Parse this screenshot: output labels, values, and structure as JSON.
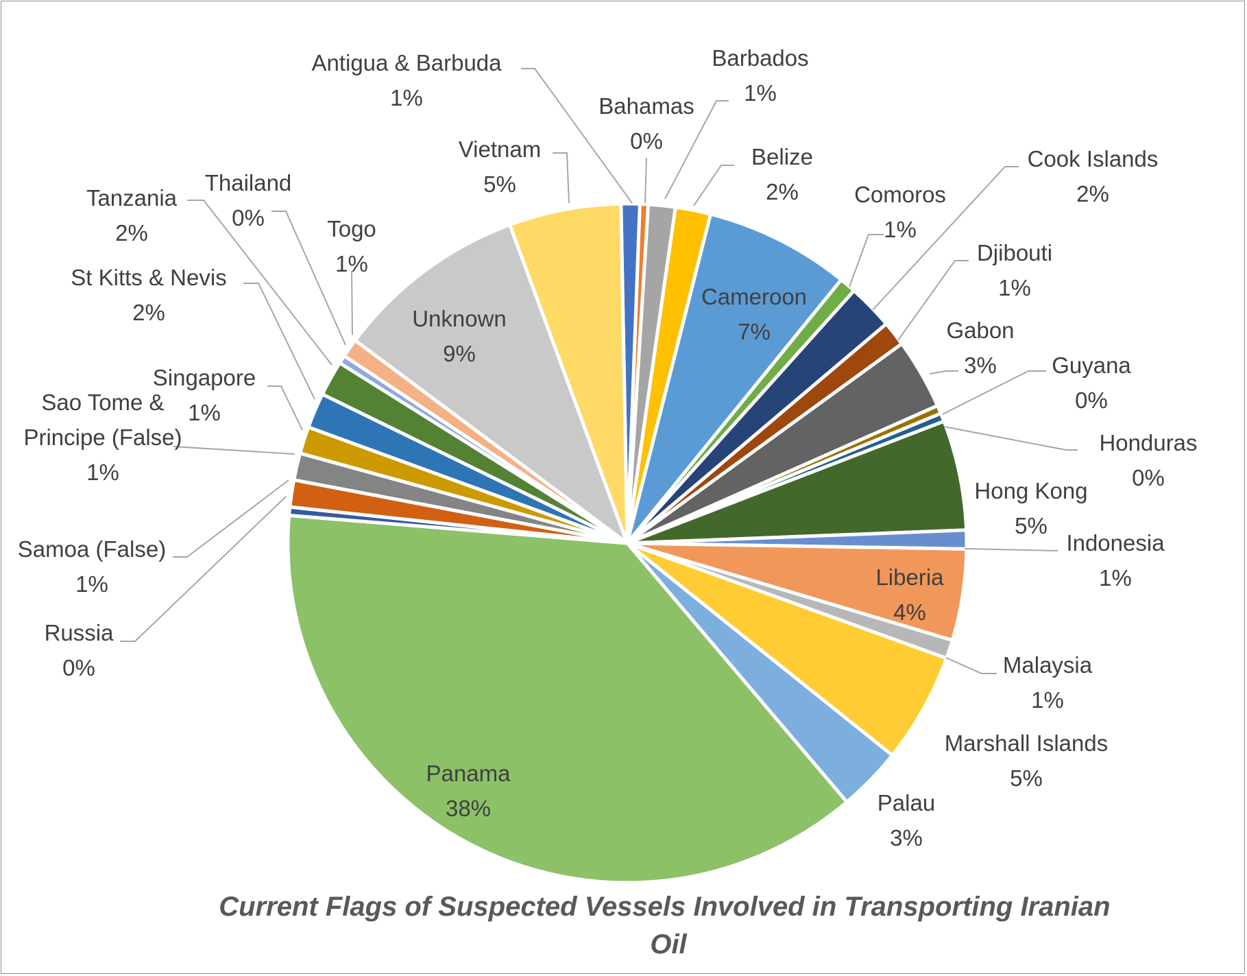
{
  "chart_data": {
    "type": "pie",
    "title": "Current Flags of  Suspected Vessels Involved in Transporting Iranian Oil",
    "slices": [
      {
        "label": "Antigua & Barbuda",
        "pct": "1%",
        "value": 0.9,
        "color": "#4472c4"
      },
      {
        "label": "Bahamas",
        "pct": "0%",
        "value": 0.4,
        "color": "#ed7d31"
      },
      {
        "label": "Barbados",
        "pct": "1%",
        "value": 1.3,
        "color": "#a5a5a5"
      },
      {
        "label": "Belize",
        "pct": "2%",
        "value": 1.7,
        "color": "#ffc000"
      },
      {
        "label": "Cameroon",
        "pct": "7%",
        "value": 7.0,
        "color": "#5b9bd5"
      },
      {
        "label": "Comoros",
        "pct": "1%",
        "value": 0.8,
        "color": "#70ad47"
      },
      {
        "label": "Cook Islands",
        "pct": "2%",
        "value": 2.2,
        "color": "#264478"
      },
      {
        "label": "Djibouti",
        "pct": "1%",
        "value": 1.2,
        "color": "#9e480e"
      },
      {
        "label": "Gabon",
        "pct": "3%",
        "value": 3.4,
        "color": "#636363"
      },
      {
        "label": "Guyana",
        "pct": "0%",
        "value": 0.4,
        "color": "#997300"
      },
      {
        "label": "Honduras",
        "pct": "0%",
        "value": 0.4,
        "color": "#255e91"
      },
      {
        "label": "Hong Kong",
        "pct": "5%",
        "value": 5.3,
        "color": "#43682b"
      },
      {
        "label": "Indonesia",
        "pct": "1%",
        "value": 0.9,
        "color": "#698ed0"
      },
      {
        "label": "Liberia",
        "pct": "4%",
        "value": 4.4,
        "color": "#f1975a"
      },
      {
        "label": "Malaysia",
        "pct": "1%",
        "value": 0.9,
        "color": "#b7b7b7"
      },
      {
        "label": "Marshall Islands",
        "pct": "5%",
        "value": 5.3,
        "color": "#ffcd33"
      },
      {
        "label": "Palau",
        "pct": "3%",
        "value": 3.1,
        "color": "#7cafdd"
      },
      {
        "label": "Panama",
        "pct": "38%",
        "value": 38.0,
        "color": "#8cc168"
      },
      {
        "label": "Russia",
        "pct": "0%",
        "value": 0.4,
        "color": "#335aa1"
      },
      {
        "label": "Samoa (False)",
        "pct": "1%",
        "value": 1.3,
        "color": "#d26012"
      },
      {
        "label": "Sao Tome & Principe (False)",
        "pct": "1%",
        "value": 1.3,
        "color": "#848484"
      },
      {
        "label": "Singapore",
        "pct": "1%",
        "value": 1.3,
        "color": "#cc9a00"
      },
      {
        "label": "St Kitts & Nevis",
        "pct": "2%",
        "value": 1.7,
        "color": "#2e75b6"
      },
      {
        "label": "Tanzania",
        "pct": "2%",
        "value": 1.7,
        "color": "#548235"
      },
      {
        "label": "Thailand",
        "pct": "0%",
        "value": 0.4,
        "color": "#8faadc"
      },
      {
        "label": "Togo",
        "pct": "1%",
        "value": 0.9,
        "color": "#f4b183"
      },
      {
        "label": "Unknown",
        "pct": "9%",
        "value": 9.3,
        "color": "#c9c9c9"
      },
      {
        "label": "Vietnam",
        "pct": "5%",
        "value": 5.4,
        "color": "#ffd966"
      }
    ],
    "legend": "none",
    "label_style": "name and percentage"
  }
}
